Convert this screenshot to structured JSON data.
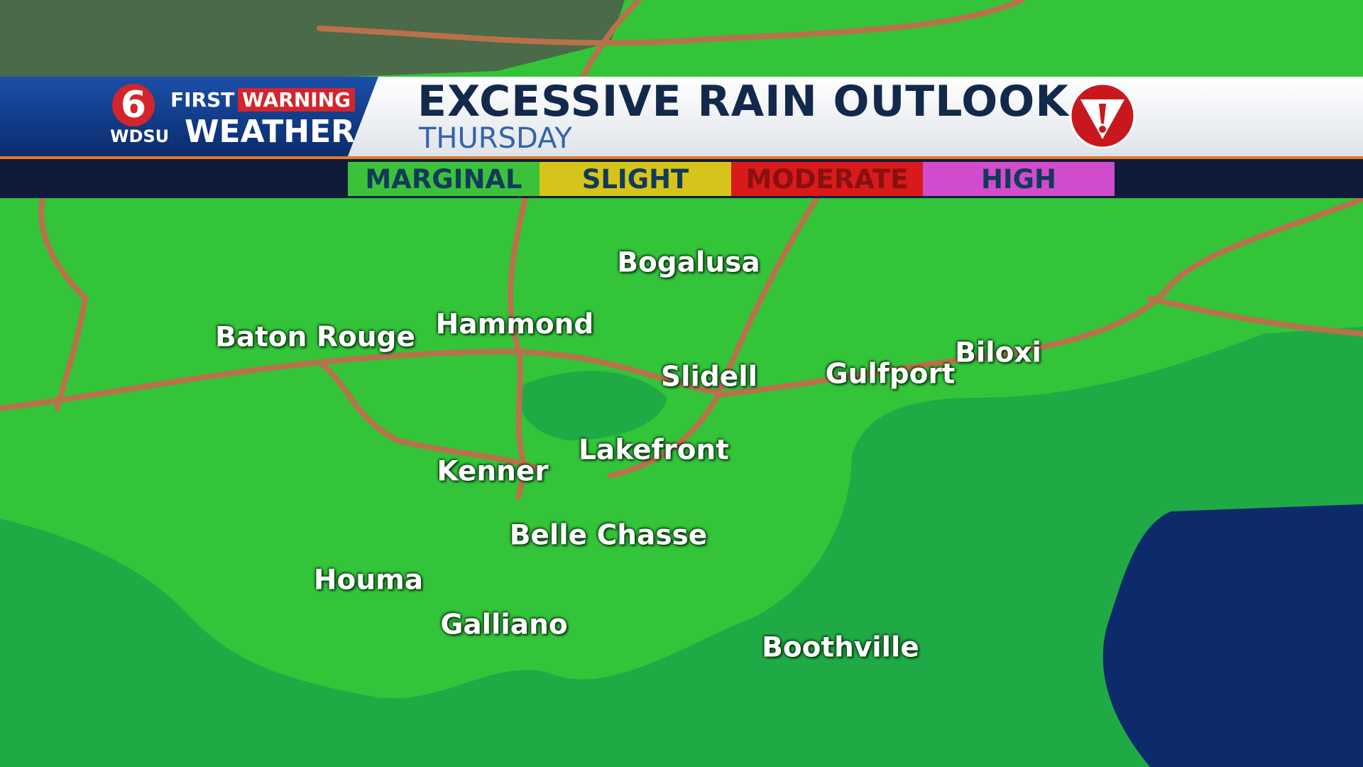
{
  "logo": {
    "number": "6",
    "first": "FIRST",
    "warning": "WARNING",
    "station": "WDSU",
    "weather": "WEATHER"
  },
  "header": {
    "title": "EXCESSIVE RAIN OUTLOOK",
    "subtitle": "THURSDAY"
  },
  "legend": [
    "MARGINAL",
    "SLIGHT",
    "MODERATE",
    "HIGH"
  ],
  "cities": [
    "Bogalusa",
    "Hammond",
    "Baton Rouge",
    "Slidell",
    "Gulfport",
    "Biloxi",
    "Lakefront",
    "Kenner",
    "Belle Chasse",
    "Houma",
    "Galliano",
    "Boothville"
  ]
}
